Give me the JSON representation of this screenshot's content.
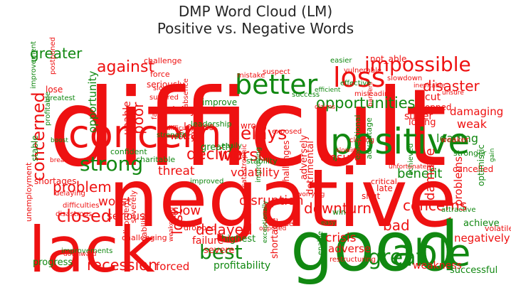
{
  "title": "DMP Word Cloud (LM)",
  "subtitle": "Positive vs. Negative Words",
  "colors": {
    "negative": "#ee1111",
    "positive": "#118811"
  },
  "words": [
    {
      "t": "difficult",
      "s": "negative"
    },
    {
      "t": "negative",
      "s": "negative"
    },
    {
      "t": "good",
      "s": "positive"
    },
    {
      "t": "lack",
      "s": "negative"
    },
    {
      "t": "concern",
      "s": "negative"
    },
    {
      "t": "positive",
      "s": "positive"
    },
    {
      "t": "better",
      "s": "positive"
    },
    {
      "t": "impossible",
      "s": "negative"
    },
    {
      "t": "loss",
      "s": "negative"
    },
    {
      "t": "able",
      "s": "positive"
    },
    {
      "t": "concerned",
      "s": "negative"
    },
    {
      "t": "strong",
      "s": "positive"
    },
    {
      "t": "closed",
      "s": "negative"
    },
    {
      "t": "best",
      "s": "positive"
    },
    {
      "t": "great",
      "s": "positive"
    },
    {
      "t": "delays",
      "s": "negative"
    },
    {
      "t": "against",
      "s": "negative"
    },
    {
      "t": "greater",
      "s": "positive"
    },
    {
      "t": "opportunities",
      "s": "positive"
    },
    {
      "t": "disaster",
      "s": "negative"
    },
    {
      "t": "problem",
      "s": "negative"
    },
    {
      "t": "delayed",
      "s": "negative"
    },
    {
      "t": "decline",
      "s": "negative"
    },
    {
      "t": "worse",
      "s": "negative"
    },
    {
      "t": "downturn",
      "s": "negative"
    },
    {
      "t": "concerns",
      "s": "negative"
    },
    {
      "t": "bad",
      "s": "negative"
    },
    {
      "t": "recession",
      "s": "negative"
    },
    {
      "t": "benefit",
      "s": "positive"
    },
    {
      "t": "closure",
      "s": "negative"
    },
    {
      "t": "fear",
      "s": "negative"
    },
    {
      "t": "disruption",
      "s": "negative"
    },
    {
      "t": "lost",
      "s": "negative"
    },
    {
      "t": "slow",
      "s": "negative"
    },
    {
      "t": "damage",
      "s": "negative"
    },
    {
      "t": "damaging",
      "s": "negative"
    },
    {
      "t": "leading",
      "s": "positive"
    },
    {
      "t": "weak",
      "s": "negative"
    },
    {
      "t": "poor",
      "s": "negative"
    },
    {
      "t": "unable",
      "s": "negative"
    },
    {
      "t": "opportunity",
      "s": "positive"
    },
    {
      "t": "threat",
      "s": "negative"
    },
    {
      "t": "volatility",
      "s": "negative"
    },
    {
      "t": "worst",
      "s": "negative"
    },
    {
      "t": "serious",
      "s": "negative"
    },
    {
      "t": "negatively",
      "s": "negative"
    },
    {
      "t": "crisis",
      "s": "negative"
    },
    {
      "t": "adverse",
      "s": "negative"
    },
    {
      "t": "weakness",
      "s": "negative"
    },
    {
      "t": "successful",
      "s": "positive"
    },
    {
      "t": "profitability",
      "s": "positive"
    },
    {
      "t": "forced",
      "s": "negative"
    },
    {
      "t": "progress",
      "s": "positive"
    },
    {
      "t": "cut",
      "s": "negative"
    },
    {
      "t": "suffer",
      "s": "negative"
    },
    {
      "t": "stopped",
      "s": "negative"
    },
    {
      "t": "losing",
      "s": "negative"
    },
    {
      "t": "cancelled",
      "s": "negative"
    },
    {
      "t": "problems",
      "s": "negative"
    },
    {
      "t": "optimistic",
      "s": "positive"
    },
    {
      "t": "achieve",
      "s": "positive"
    },
    {
      "t": "volatile",
      "s": "negative"
    },
    {
      "t": "highest",
      "s": "positive"
    },
    {
      "t": "severe",
      "s": "negative"
    },
    {
      "t": "failure",
      "s": "negative"
    },
    {
      "t": "dropped",
      "s": "negative"
    },
    {
      "t": "shortage",
      "s": "negative"
    },
    {
      "t": "detrimental",
      "s": "negative"
    },
    {
      "t": "adversely",
      "s": "negative"
    },
    {
      "t": "delay",
      "s": "negative"
    },
    {
      "t": "losses",
      "s": "negative"
    },
    {
      "t": "worry",
      "s": "negative"
    },
    {
      "t": "greatly",
      "s": "positive"
    },
    {
      "t": "wrong",
      "s": "negative"
    },
    {
      "t": "improve",
      "s": "positive"
    },
    {
      "t": "leadership",
      "s": "positive"
    },
    {
      "t": "lose",
      "s": "negative"
    },
    {
      "t": "greatest",
      "s": "positive"
    },
    {
      "t": "seriously",
      "s": "negative"
    },
    {
      "t": "force",
      "s": "negative"
    },
    {
      "t": "challenge",
      "s": "negative"
    },
    {
      "t": "not_able",
      "s": "negative"
    },
    {
      "t": "success",
      "s": "positive"
    },
    {
      "t": "stable",
      "s": "positive"
    },
    {
      "t": "shortages",
      "s": "negative"
    },
    {
      "t": "confident",
      "s": "positive"
    },
    {
      "t": "charitable",
      "s": "positive"
    },
    {
      "t": "stability",
      "s": "positive"
    },
    {
      "t": "critical",
      "s": "negative"
    },
    {
      "t": "exceptional",
      "s": "positive"
    },
    {
      "t": "advantage",
      "s": "positive"
    },
    {
      "t": "weaker",
      "s": "negative"
    },
    {
      "t": "strength",
      "s": "positive"
    },
    {
      "t": "challenging",
      "s": "negative"
    },
    {
      "t": "disastrous",
      "s": "negative"
    },
    {
      "t": "delaying",
      "s": "negative"
    },
    {
      "t": "difficulties",
      "s": "negative"
    },
    {
      "t": "unemployment",
      "s": "negative"
    },
    {
      "t": "severely",
      "s": "negative"
    },
    {
      "t": "inability",
      "s": "negative"
    },
    {
      "t": "disorderly",
      "s": "negative"
    },
    {
      "t": "catastrophic",
      "s": "negative"
    },
    {
      "t": "challenges",
      "s": "negative"
    },
    {
      "t": "shut",
      "s": "negative"
    },
    {
      "t": "late",
      "s": "negative"
    },
    {
      "t": "win",
      "s": "positive"
    },
    {
      "t": "enable",
      "s": "positive"
    },
    {
      "t": "restructuring",
      "s": "negative"
    },
    {
      "t": "attractive",
      "s": "positive"
    },
    {
      "t": "achieved",
      "s": "positive"
    },
    {
      "t": "stronger",
      "s": "positive"
    },
    {
      "t": "gain",
      "s": "positive"
    },
    {
      "t": "unfortunately",
      "s": "negative"
    },
    {
      "t": "improved",
      "s": "positive"
    },
    {
      "t": "easily",
      "s": "positive"
    },
    {
      "t": "easy",
      "s": "positive"
    },
    {
      "t": "collapse",
      "s": "negative"
    },
    {
      "t": "weakening",
      "s": "negative"
    },
    {
      "t": "improvements",
      "s": "positive"
    },
    {
      "t": "downward",
      "s": "negative"
    },
    {
      "t": "break",
      "s": "negative"
    },
    {
      "t": "boost",
      "s": "positive"
    },
    {
      "t": "profitable",
      "s": "positive"
    },
    {
      "t": "improvement",
      "s": "positive"
    },
    {
      "t": "postponed",
      "s": "negative"
    },
    {
      "t": "slowed",
      "s": "negative"
    },
    {
      "t": "suffered",
      "s": "negative"
    },
    {
      "t": "fail",
      "s": "negative"
    },
    {
      "t": "absence",
      "s": "negative"
    },
    {
      "t": "difficulty",
      "s": "negative"
    },
    {
      "t": "mistake",
      "s": "negative"
    },
    {
      "t": "suspect",
      "s": "negative"
    },
    {
      "t": "easier",
      "s": "positive"
    },
    {
      "t": "slowdown",
      "s": "negative"
    },
    {
      "t": "inevitable",
      "s": "negative"
    },
    {
      "t": "unsure",
      "s": "negative"
    },
    {
      "t": "vulnerable",
      "s": "negative"
    },
    {
      "t": "misleading",
      "s": "negative"
    },
    {
      "t": "barriers",
      "s": "negative"
    },
    {
      "t": "effective",
      "s": "positive"
    },
    {
      "t": "efficient",
      "s": "positive"
    },
    {
      "t": "claims",
      "s": "negative"
    },
    {
      "t": "exposed",
      "s": "negative"
    },
    {
      "t": "closing",
      "s": "negative"
    },
    {
      "t": "slowing",
      "s": "negative"
    },
    {
      "t": "improving",
      "s": "positive"
    },
    {
      "t": "opposed",
      "s": "negative"
    },
    {
      "t": "exceptionally",
      "s": "positive"
    },
    {
      "t": "worrying",
      "s": "negative"
    },
    {
      "t": "efficiency",
      "s": "positive"
    },
    {
      "t": "failed",
      "s": "negative"
    }
  ]
}
